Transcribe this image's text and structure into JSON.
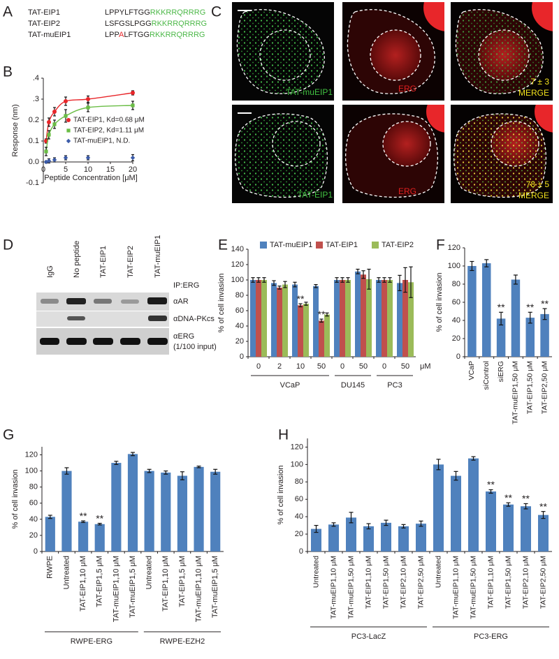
{
  "panel_labels": [
    "A",
    "B",
    "C",
    "D",
    "E",
    "F",
    "G",
    "H"
  ],
  "sequences": [
    {
      "name": "TAT-EIP1",
      "segments": [
        {
          "text": "LPPYLFTGG",
          "color": "#231f20"
        },
        {
          "text": "RKKRRQRRRG",
          "color": "#4cb848"
        }
      ]
    },
    {
      "name": "TAT-EIP2",
      "segments": [
        {
          "text": "LSFGSLPGG",
          "color": "#231f20"
        },
        {
          "text": "RKKRRQRRRG",
          "color": "#4cb848"
        }
      ]
    },
    {
      "name": "TAT-muEIP1",
      "segments": [
        {
          "text": "LPP",
          "color": "#231f20"
        },
        {
          "text": "A",
          "color": "#e8262a"
        },
        {
          "text": "LFTGG",
          "color": "#231f20"
        },
        {
          "text": "RKKRRQRRRG",
          "color": "#4cb848"
        }
      ]
    }
  ],
  "microscopy": {
    "rows": [
      {
        "channels": [
          "TAT-muEIP1",
          "ERG",
          "MERGE"
        ],
        "count": "7 ± 3"
      },
      {
        "channels": [
          "TAT-EIP1",
          "ERG",
          "MERGE"
        ],
        "count": "78 ± 5"
      }
    ]
  },
  "blot": {
    "lanes": [
      "IgG",
      "No peptide",
      "TAT-EIP1",
      "TAT-EIP2",
      "TAT-muEIP1"
    ],
    "ip": "IP:ERG",
    "rows": [
      {
        "label": "αAR"
      },
      {
        "label": "αDNA-PKcs"
      },
      {
        "label": "αERG",
        "note": "(1/100 input)"
      }
    ]
  },
  "chart_data": [
    {
      "type": "line",
      "x_label": "Peptide Concentration [μM]",
      "y_label": "Response (nm)",
      "x": [
        0.625,
        1.25,
        2.5,
        5,
        10,
        20
      ],
      "series": [
        {
          "name": "TAT-EIP1, Kd=0.68 μM",
          "color": "#e8262a",
          "marker": "circle",
          "line": true,
          "values": [
            0.1,
            0.19,
            0.24,
            0.29,
            0.3,
            0.33
          ],
          "errors": [
            0.01,
            0.02,
            0.02,
            0.02,
            0.015,
            0.01
          ]
        },
        {
          "name": "TAT-EIP2, Kd=1.11 μM",
          "color": "#6abd45",
          "marker": "square",
          "line": true,
          "values": [
            0.05,
            0.13,
            0.18,
            0.22,
            0.26,
            0.27
          ],
          "errors": [
            0.02,
            0.02,
            0.02,
            0.03,
            0.02,
            0.02
          ]
        },
        {
          "name": "TAT-muEIP1, N.D.",
          "color": "#3b5ba9",
          "marker": "diamond",
          "line": false,
          "values": [
            0.0,
            0.005,
            0.01,
            0.02,
            0.02,
            0.02
          ],
          "errors": [
            0.005,
            0.01,
            0.01,
            0.01,
            0.01,
            0.015
          ]
        }
      ],
      "xlim": [
        0,
        20
      ],
      "xticks": [
        0,
        5,
        10,
        15,
        20
      ],
      "ylim": [
        -0.1,
        0.4
      ],
      "yticks": [
        -0.1,
        {
          "value": 0,
          "label": "0.0"
        },
        0.1,
        0.2,
        {
          "value": 0.3,
          "label": ".3"
        },
        {
          "value": 0.4,
          "label": ".4"
        }
      ],
      "legend": "center-right"
    },
    {
      "type": "bar",
      "y_label": "% of cell invasion",
      "x_unit": "μM",
      "groups": [
        {
          "name": "VCaP",
          "categories": [
            "0",
            "2",
            "10",
            "50"
          ]
        },
        {
          "name": "DU145",
          "categories": [
            "0",
            "50"
          ]
        },
        {
          "name": "PC3",
          "categories": [
            "0",
            "50"
          ]
        }
      ],
      "series": [
        {
          "name": "TAT-muEIP1",
          "color": "#4f81bd",
          "values": [
            100,
            96,
            94,
            92,
            100,
            111,
            100,
            96
          ],
          "errors": [
            3,
            3,
            3,
            2,
            3,
            3,
            3,
            10
          ]
        },
        {
          "name": "TAT-EIP1",
          "color": "#c0504d",
          "values": [
            100,
            90,
            67,
            47,
            100,
            107,
            100,
            100
          ],
          "errors": [
            3,
            2,
            2,
            2,
            3,
            5,
            3,
            16
          ],
          "significance": [
            null,
            null,
            "**",
            "**",
            null,
            null,
            null,
            null
          ]
        },
        {
          "name": "TAT-EIP2",
          "color": "#9bbb59",
          "values": [
            100,
            94,
            69,
            55,
            100,
            101,
            100,
            97
          ],
          "errors": [
            3,
            4,
            2,
            2,
            3,
            13,
            3,
            20
          ]
        }
      ],
      "ylim": [
        0,
        140
      ],
      "yticks": [
        0,
        20,
        40,
        60,
        80,
        100,
        120,
        140
      ],
      "legend": "top"
    },
    {
      "type": "bar",
      "y_label": "% of cell invasion",
      "categories": [
        "VCaP",
        "siControl",
        "siERG",
        "TAT-muEIP1,50 μM",
        "TAT-EIP1,50 μM",
        "TAT-EIP2,50 μM"
      ],
      "color": "#4f81bd",
      "values": [
        100,
        103,
        42,
        85,
        43,
        47
      ],
      "errors": [
        5,
        4,
        7,
        5,
        6,
        6
      ],
      "significance": [
        null,
        null,
        "**",
        null,
        "**",
        "**"
      ],
      "ylim": [
        0,
        120
      ],
      "yticks": [
        0,
        20,
        40,
        60,
        80,
        100,
        120
      ]
    },
    {
      "type": "bar",
      "y_label": "% of cell invasion",
      "groups": [
        {
          "name": "RWPE-ERG",
          "categories": [
            "RWPE",
            "Untreated",
            "TAT-EIP1,10 μM",
            "TAT-EIP1,5 μM",
            "TAT-muEIP1,10 μM",
            "TAT-muEIP1,5 μM"
          ]
        },
        {
          "name": "RWPE-EZH2",
          "categories": [
            "Untreated",
            "TAT-EIP1,10 μM",
            "TAT-EIP1,5 μM",
            "TAT-muEIP1,10 μM",
            "TAT-muEIP1,5 μM"
          ]
        }
      ],
      "color": "#4f81bd",
      "values": [
        43,
        100,
        37,
        34,
        110,
        121,
        100,
        98,
        94,
        105,
        99
      ],
      "errors": [
        2,
        4,
        1,
        1,
        2,
        2,
        2,
        2,
        5,
        1,
        3
      ],
      "significance": [
        null,
        null,
        "**",
        "**",
        null,
        null,
        null,
        null,
        null,
        null,
        null
      ],
      "ylim": [
        0,
        130
      ],
      "yticks": [
        0,
        20,
        40,
        60,
        80,
        100,
        120
      ]
    },
    {
      "type": "bar",
      "y_label": "% of cell invasion",
      "groups": [
        {
          "name": "PC3-LacZ",
          "categories": [
            "Untreated",
            "TAT-muEIP1,10 μM",
            "TAT-muEIP1,50 μM",
            "TAT-EIP1,10 μM",
            "TAT-EIP1,50 μM",
            "TAT-EIP2,10 μM",
            "TAT-EIP2,50 μM"
          ]
        },
        {
          "name": "PC3-ERG",
          "categories": [
            "Untreated",
            "TAT-muEIP1,10 μM",
            "TAT-muEIP1,50 μM",
            "TAT-EIP1,10 μM",
            "TAT-EIP1,50 μM",
            "TAT-EIP2,10 μM",
            "TAT-EIP2,50 μM"
          ]
        }
      ],
      "color": "#4f81bd",
      "values": [
        26,
        31,
        39,
        29,
        33,
        29,
        32,
        100,
        87,
        107,
        69,
        54,
        52,
        42
      ],
      "errors": [
        4,
        2,
        6,
        3,
        3,
        2,
        3,
        6,
        5,
        2,
        2,
        2,
        3,
        4
      ],
      "significance": [
        null,
        null,
        null,
        null,
        null,
        null,
        null,
        null,
        null,
        null,
        "**",
        "**",
        "**",
        "**"
      ],
      "ylim": [
        0,
        130
      ],
      "yticks": [
        0,
        20,
        40,
        60,
        80,
        100,
        120
      ]
    }
  ]
}
